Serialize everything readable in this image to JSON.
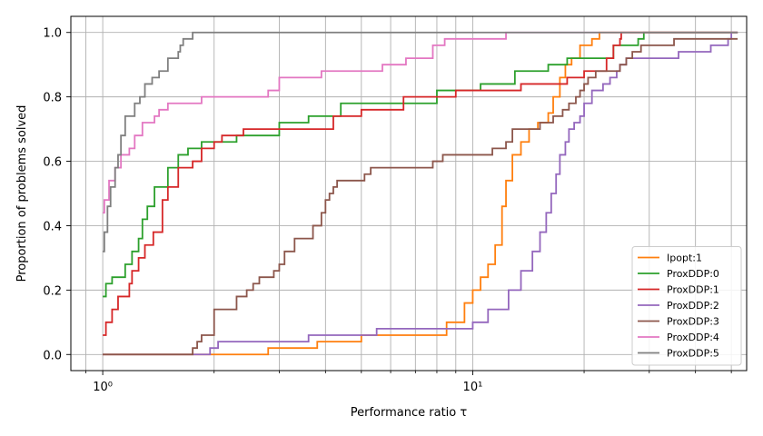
{
  "chart_data": {
    "type": "line",
    "step": true,
    "xscale": "log",
    "xlim": [
      0.82,
      55
    ],
    "ylim": [
      -0.05,
      1.05
    ],
    "xlabel": "Performance ratio τ",
    "ylabel": "Proportion of problems solved",
    "x_ticks": [
      {
        "value": 1,
        "label": "10⁰"
      },
      {
        "value": 10,
        "label": "10¹"
      }
    ],
    "y_ticks": [
      {
        "value": 0.0,
        "label": "0.0"
      },
      {
        "value": 0.2,
        "label": "0.2"
      },
      {
        "value": 0.4,
        "label": "0.4"
      },
      {
        "value": 0.6,
        "label": "0.6"
      },
      {
        "value": 0.8,
        "label": "0.8"
      },
      {
        "value": 1.0,
        "label": "1.0"
      }
    ],
    "grid": true,
    "legend_position": "lower-right",
    "series": [
      {
        "name": "Ipopt:1",
        "color": "#ff7f0e",
        "points": [
          [
            1.0,
            0.0
          ],
          [
            2.8,
            0.0
          ],
          [
            2.8,
            0.02
          ],
          [
            3.8,
            0.02
          ],
          [
            3.8,
            0.04
          ],
          [
            5.0,
            0.04
          ],
          [
            5.0,
            0.06
          ],
          [
            8.5,
            0.06
          ],
          [
            8.5,
            0.1
          ],
          [
            9.5,
            0.1
          ],
          [
            9.5,
            0.16
          ],
          [
            10.0,
            0.2
          ],
          [
            10.5,
            0.24
          ],
          [
            11.0,
            0.28
          ],
          [
            11.5,
            0.34
          ],
          [
            12.0,
            0.46
          ],
          [
            12.3,
            0.54
          ],
          [
            12.8,
            0.62
          ],
          [
            13.5,
            0.66
          ],
          [
            14.2,
            0.7
          ],
          [
            15.0,
            0.72
          ],
          [
            16.0,
            0.75
          ],
          [
            16.5,
            0.8
          ],
          [
            17.2,
            0.86
          ],
          [
            17.8,
            0.9
          ],
          [
            18.5,
            0.92
          ],
          [
            19.5,
            0.96
          ],
          [
            21.0,
            0.98
          ],
          [
            22.0,
            1.0
          ],
          [
            52.0,
            1.0
          ]
        ]
      },
      {
        "name": "ProxDDP:0",
        "color": "#2ca02c",
        "points": [
          [
            1.0,
            0.18
          ],
          [
            1.02,
            0.22
          ],
          [
            1.06,
            0.24
          ],
          [
            1.15,
            0.28
          ],
          [
            1.2,
            0.32
          ],
          [
            1.25,
            0.36
          ],
          [
            1.28,
            0.42
          ],
          [
            1.32,
            0.46
          ],
          [
            1.38,
            0.52
          ],
          [
            1.5,
            0.58
          ],
          [
            1.6,
            0.62
          ],
          [
            1.7,
            0.64
          ],
          [
            1.85,
            0.66
          ],
          [
            2.3,
            0.66
          ],
          [
            2.3,
            0.68
          ],
          [
            3.0,
            0.68
          ],
          [
            3.0,
            0.72
          ],
          [
            3.6,
            0.72
          ],
          [
            3.6,
            0.74
          ],
          [
            4.4,
            0.74
          ],
          [
            4.4,
            0.78
          ],
          [
            8.0,
            0.78
          ],
          [
            8.0,
            0.82
          ],
          [
            10.5,
            0.82
          ],
          [
            10.5,
            0.84
          ],
          [
            13.0,
            0.84
          ],
          [
            13.0,
            0.88
          ],
          [
            16.0,
            0.88
          ],
          [
            16.0,
            0.9
          ],
          [
            18.0,
            0.9
          ],
          [
            18.0,
            0.92
          ],
          [
            24.0,
            0.92
          ],
          [
            24.0,
            0.96
          ],
          [
            28.0,
            0.96
          ],
          [
            28.0,
            0.98
          ],
          [
            29.0,
            1.0
          ],
          [
            52.0,
            1.0
          ]
        ]
      },
      {
        "name": "ProxDDP:1",
        "color": "#d62728",
        "points": [
          [
            1.0,
            0.06
          ],
          [
            1.02,
            0.1
          ],
          [
            1.06,
            0.14
          ],
          [
            1.1,
            0.18
          ],
          [
            1.18,
            0.22
          ],
          [
            1.2,
            0.26
          ],
          [
            1.25,
            0.3
          ],
          [
            1.3,
            0.34
          ],
          [
            1.37,
            0.38
          ],
          [
            1.45,
            0.48
          ],
          [
            1.5,
            0.52
          ],
          [
            1.6,
            0.58
          ],
          [
            1.75,
            0.6
          ],
          [
            1.85,
            0.64
          ],
          [
            2.0,
            0.66
          ],
          [
            2.1,
            0.68
          ],
          [
            2.4,
            0.7
          ],
          [
            4.2,
            0.7
          ],
          [
            4.2,
            0.74
          ],
          [
            5.0,
            0.74
          ],
          [
            5.0,
            0.76
          ],
          [
            6.5,
            0.76
          ],
          [
            6.5,
            0.8
          ],
          [
            9.0,
            0.8
          ],
          [
            9.0,
            0.82
          ],
          [
            13.5,
            0.82
          ],
          [
            13.5,
            0.84
          ],
          [
            18.0,
            0.84
          ],
          [
            18.0,
            0.86
          ],
          [
            20.0,
            0.86
          ],
          [
            20.0,
            0.88
          ],
          [
            23.0,
            0.88
          ],
          [
            23.0,
            0.92
          ],
          [
            24.0,
            0.96
          ],
          [
            25.0,
            0.98
          ],
          [
            25.2,
            1.0
          ],
          [
            52.0,
            1.0
          ]
        ]
      },
      {
        "name": "ProxDDP:2",
        "color": "#9467bd",
        "points": [
          [
            1.0,
            0.0
          ],
          [
            1.95,
            0.0
          ],
          [
            1.95,
            0.02
          ],
          [
            2.05,
            0.04
          ],
          [
            3.6,
            0.04
          ],
          [
            3.6,
            0.06
          ],
          [
            5.5,
            0.06
          ],
          [
            5.5,
            0.08
          ],
          [
            10.0,
            0.08
          ],
          [
            10.0,
            0.1
          ],
          [
            11.0,
            0.1
          ],
          [
            11.0,
            0.14
          ],
          [
            12.0,
            0.14
          ],
          [
            12.5,
            0.2
          ],
          [
            13.5,
            0.26
          ],
          [
            14.5,
            0.32
          ],
          [
            15.2,
            0.38
          ],
          [
            15.8,
            0.44
          ],
          [
            16.3,
            0.5
          ],
          [
            16.8,
            0.56
          ],
          [
            17.2,
            0.62
          ],
          [
            17.8,
            0.66
          ],
          [
            18.2,
            0.7
          ],
          [
            18.8,
            0.72
          ],
          [
            19.5,
            0.74
          ],
          [
            20.0,
            0.78
          ],
          [
            21.0,
            0.82
          ],
          [
            22.5,
            0.84
          ],
          [
            23.5,
            0.86
          ],
          [
            24.5,
            0.88
          ],
          [
            25.0,
            0.9
          ],
          [
            26.0,
            0.92
          ],
          [
            36.0,
            0.92
          ],
          [
            36.0,
            0.94
          ],
          [
            44.0,
            0.94
          ],
          [
            44.0,
            0.96
          ],
          [
            49.0,
            0.96
          ],
          [
            49.0,
            0.98
          ],
          [
            50.0,
            1.0
          ],
          [
            52.0,
            1.0
          ]
        ]
      },
      {
        "name": "ProxDDP:3",
        "color": "#8c564b",
        "points": [
          [
            1.0,
            0.0
          ],
          [
            1.75,
            0.0
          ],
          [
            1.75,
            0.02
          ],
          [
            1.8,
            0.04
          ],
          [
            1.85,
            0.06
          ],
          [
            2.0,
            0.1
          ],
          [
            2.0,
            0.14
          ],
          [
            2.3,
            0.14
          ],
          [
            2.3,
            0.18
          ],
          [
            2.45,
            0.2
          ],
          [
            2.55,
            0.22
          ],
          [
            2.65,
            0.24
          ],
          [
            2.9,
            0.26
          ],
          [
            3.0,
            0.28
          ],
          [
            3.1,
            0.32
          ],
          [
            3.3,
            0.36
          ],
          [
            3.55,
            0.36
          ],
          [
            3.7,
            0.4
          ],
          [
            3.9,
            0.44
          ],
          [
            4.0,
            0.48
          ],
          [
            4.1,
            0.5
          ],
          [
            4.2,
            0.52
          ],
          [
            4.3,
            0.54
          ],
          [
            4.95,
            0.54
          ],
          [
            5.1,
            0.56
          ],
          [
            5.3,
            0.58
          ],
          [
            7.8,
            0.58
          ],
          [
            7.8,
            0.6
          ],
          [
            8.3,
            0.6
          ],
          [
            8.3,
            0.62
          ],
          [
            11.3,
            0.62
          ],
          [
            11.3,
            0.64
          ],
          [
            12.3,
            0.64
          ],
          [
            12.3,
            0.66
          ],
          [
            12.8,
            0.7
          ],
          [
            15.2,
            0.7
          ],
          [
            15.2,
            0.72
          ],
          [
            16.0,
            0.72
          ],
          [
            16.5,
            0.74
          ],
          [
            17.5,
            0.76
          ],
          [
            18.2,
            0.78
          ],
          [
            19.0,
            0.8
          ],
          [
            19.5,
            0.82
          ],
          [
            20.0,
            0.84
          ],
          [
            20.5,
            0.86
          ],
          [
            21.5,
            0.88
          ],
          [
            25.0,
            0.88
          ],
          [
            25.0,
            0.9
          ],
          [
            26.0,
            0.92
          ],
          [
            27.0,
            0.94
          ],
          [
            28.5,
            0.96
          ],
          [
            35.0,
            0.96
          ],
          [
            35.0,
            0.98
          ],
          [
            52.0,
            0.98
          ]
        ]
      },
      {
        "name": "ProxDDP:4",
        "color": "#e377c2",
        "points": [
          [
            1.0,
            0.44
          ],
          [
            1.01,
            0.48
          ],
          [
            1.04,
            0.54
          ],
          [
            1.08,
            0.58
          ],
          [
            1.12,
            0.62
          ],
          [
            1.18,
            0.64
          ],
          [
            1.22,
            0.68
          ],
          [
            1.28,
            0.72
          ],
          [
            1.38,
            0.74
          ],
          [
            1.42,
            0.76
          ],
          [
            1.5,
            0.78
          ],
          [
            1.85,
            0.8
          ],
          [
            2.8,
            0.8
          ],
          [
            2.8,
            0.82
          ],
          [
            3.0,
            0.82
          ],
          [
            3.0,
            0.86
          ],
          [
            3.9,
            0.86
          ],
          [
            3.9,
            0.88
          ],
          [
            5.7,
            0.88
          ],
          [
            5.7,
            0.9
          ],
          [
            6.6,
            0.9
          ],
          [
            6.6,
            0.92
          ],
          [
            7.8,
            0.92
          ],
          [
            7.8,
            0.96
          ],
          [
            8.4,
            0.96
          ],
          [
            8.4,
            0.98
          ],
          [
            12.3,
            0.98
          ],
          [
            12.3,
            1.0
          ],
          [
            52.0,
            1.0
          ]
        ]
      },
      {
        "name": "ProxDDP:5",
        "color": "#7f7f7f",
        "points": [
          [
            1.0,
            0.32
          ],
          [
            1.01,
            0.38
          ],
          [
            1.03,
            0.46
          ],
          [
            1.05,
            0.52
          ],
          [
            1.08,
            0.58
          ],
          [
            1.1,
            0.62
          ],
          [
            1.12,
            0.68
          ],
          [
            1.15,
            0.74
          ],
          [
            1.22,
            0.78
          ],
          [
            1.26,
            0.8
          ],
          [
            1.3,
            0.84
          ],
          [
            1.36,
            0.86
          ],
          [
            1.42,
            0.88
          ],
          [
            1.5,
            0.92
          ],
          [
            1.6,
            0.94
          ],
          [
            1.62,
            0.96
          ],
          [
            1.65,
            0.98
          ],
          [
            1.75,
            1.0
          ],
          [
            52.0,
            1.0
          ]
        ]
      }
    ]
  }
}
